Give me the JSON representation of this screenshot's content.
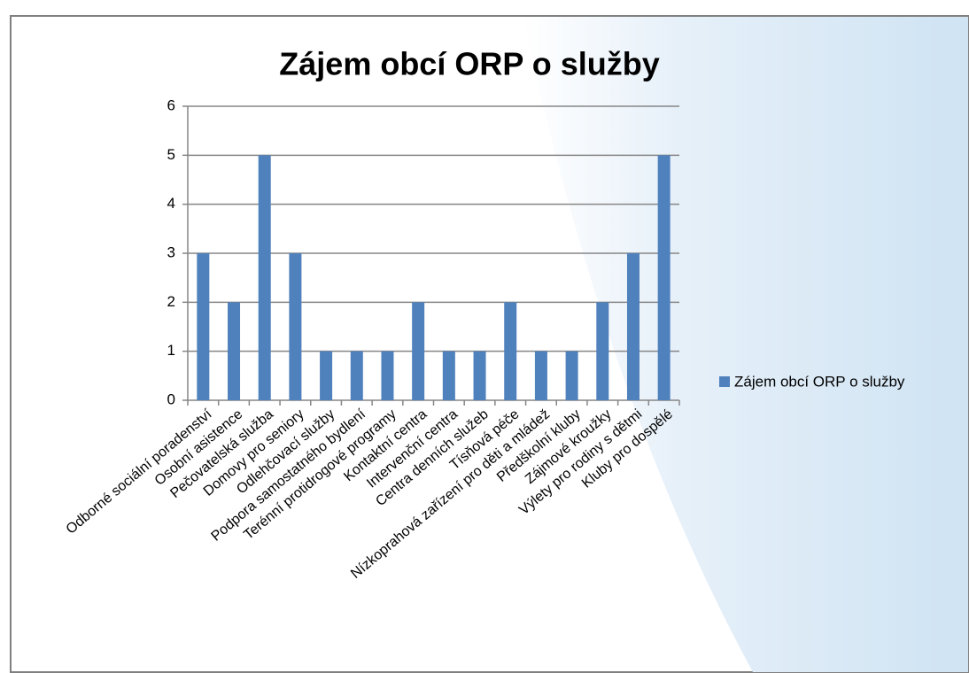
{
  "chart_data": {
    "type": "bar",
    "title": "Zájem obcí ORP o služby",
    "categories": [
      "Odborné sociální poradenství",
      "Osobní asistence",
      "Pečovatelská služba",
      "Domovy pro seniory",
      "Odlehčovací služby",
      "Podpora samostatného bydlení",
      "Terénní protidrogové programy",
      "Kontaktní centra",
      "Intervenční centra",
      "Centra denních služeb",
      "Tísňová péče",
      "Nízkoprahová zařízení pro děti a mládež",
      "Předškolní kluby",
      "Zájmové kroužky",
      "Výlety pro rodiny s dětmi",
      "Kluby pro dospělé"
    ],
    "series": [
      {
        "name": "Zájem obcí ORP o služby",
        "color": "#4f81bd",
        "values": [
          3,
          2,
          5,
          3,
          1,
          1,
          1,
          2,
          1,
          1,
          2,
          1,
          1,
          2,
          3,
          5
        ]
      }
    ],
    "ylim": [
      0,
      6
    ],
    "yticks": [
      0,
      1,
      2,
      3,
      4,
      5,
      6
    ],
    "grid": true,
    "legend": "right"
  }
}
